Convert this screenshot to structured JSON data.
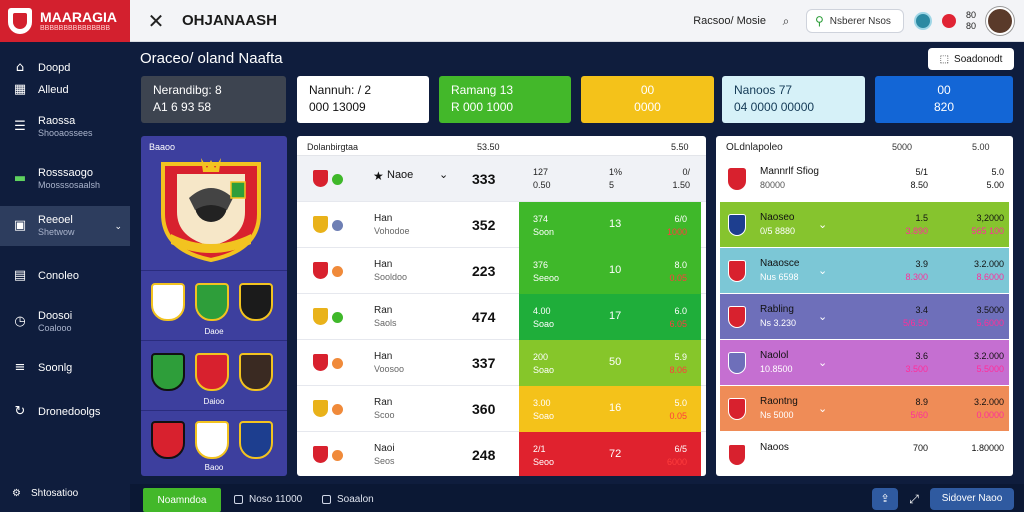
{
  "brand": {
    "name": "MAARAGIA",
    "tagline": "BBBBBBBBBBBBBBB"
  },
  "topbar": {
    "title": "OHJANAASH",
    "link_label": "Racsoo/ Mosie",
    "search_label": "Nsberer Nsos",
    "balance": [
      "80",
      "80"
    ]
  },
  "sidebar": {
    "items": [
      {
        "title": "Doopd",
        "sub": "",
        "icon": "home-icon"
      },
      {
        "title": "Alleud",
        "sub": "",
        "icon": "grid-icon"
      },
      {
        "title": "Raossa",
        "sub": "Shooaossees",
        "icon": "list-icon"
      },
      {
        "title": "Rosssaogo",
        "sub": "Moosssosaalsh",
        "icon": "money-icon"
      },
      {
        "title": "Reeoel",
        "sub": "Shetwow",
        "icon": "wallet-icon",
        "active": true
      },
      {
        "title": "Conoleo",
        "sub": "",
        "icon": "calendar-icon"
      },
      {
        "title": "Doosoi",
        "sub": "Coalooo",
        "icon": "clock-icon"
      },
      {
        "title": "Soonlg",
        "sub": "",
        "icon": "stack-icon"
      },
      {
        "title": "Dronedoolgs",
        "sub": "",
        "icon": "history-icon"
      }
    ],
    "footer": "Shtosatioo"
  },
  "main": {
    "title": "Oraceo/ oland Naafta",
    "export_label": "Soadonodt"
  },
  "kpis": [
    {
      "label": "Nerandibg: 8",
      "value": "A1 6 93 58"
    },
    {
      "label": "Nannuh: / 2",
      "value": "000 13009"
    },
    {
      "label": "Ramang 13",
      "value": "R 000 1000"
    },
    {
      "label": "00",
      "value": "0000"
    },
    {
      "label": "Nanoos 77",
      "value": "04 0000 00000"
    },
    {
      "label": "00",
      "value": "820"
    }
  ],
  "clubs": {
    "header": "Baaoo",
    "captions": [
      "Daoe",
      "Daioo",
      "Baoo"
    ]
  },
  "table": {
    "header": {
      "col1": "Dolanbirgtaa",
      "col2": "53.50",
      "col3": "5.50"
    },
    "highlight": {
      "name": "Naoe",
      "value": "333",
      "a": "127",
      "a_sub": "0.50",
      "b": "1%",
      "b_sub": "5",
      "c": "0/",
      "c_sub": "1.50"
    },
    "rows": [
      {
        "name": "Han",
        "sub": "Vohodoe",
        "value": "352",
        "c1a": "374",
        "c1b": "Soon",
        "c2": "13",
        "c3a": "6/0",
        "c3b": "1000",
        "color": "#3fb82a",
        "dot": "#6e7fb4"
      },
      {
        "name": "Han",
        "sub": "Sooldoo",
        "value": "223",
        "c1a": "376",
        "c1b": "Seeoo",
        "c2": "10",
        "c3a": "8.0",
        "c3b": "0.05",
        "color": "#3fb82a",
        "dot": "#f08a3a"
      },
      {
        "name": "Ran",
        "sub": "Saols",
        "value": "474",
        "c1a": "4.00",
        "c1b": "Soao",
        "c2": "17",
        "c3a": "6.0",
        "c3b": "6.05",
        "color": "#1fae3a",
        "dot": "#3fb82a"
      },
      {
        "name": "Han",
        "sub": "Voosoo",
        "value": "337",
        "c1a": "200",
        "c1b": "Soao",
        "c2": "50",
        "c3a": "5.9",
        "c3b": "8.06",
        "color": "#86c62a",
        "dot": "#f08a3a"
      },
      {
        "name": "Ran",
        "sub": "Scoo",
        "value": "360",
        "c1a": "3.00",
        "c1b": "Soao",
        "c2": "16",
        "c3a": "5.0",
        "c3b": "0.05",
        "color": "#f4c21a",
        "dot": "#f08a3a"
      },
      {
        "name": "Naoi",
        "sub": "Seos",
        "value": "248",
        "c1a": "2/1",
        "c1b": "Seoo",
        "c2": "72",
        "c3a": "6/5",
        "c3b": "6000",
        "color": "#e0222e",
        "dot": "#f08a3a"
      }
    ]
  },
  "right_panel": {
    "header": "OLdnlapoleo",
    "col1": "5000",
    "col2": "5.00",
    "top": {
      "name": "Mannrlf Sfiog",
      "sub": "80000",
      "a1": "5/1",
      "a2": "8.50",
      "b1": "5.0",
      "b2": "5.00"
    },
    "rows": [
      {
        "name": "Naoseo",
        "sub": "0/5 8880",
        "a1": "1.5",
        "a2": "3.890",
        "b1": "3,2000",
        "b2": "565 100",
        "color": "#86c42e"
      },
      {
        "name": "Naaosce",
        "sub": "Nus 6598",
        "a1": "3.9",
        "a2": "8.300",
        "b1": "3.2.000",
        "b2": "8.6000",
        "color": "#7cc7d6"
      },
      {
        "name": "Rabling",
        "sub": "Ns 3.230",
        "a1": "3.4",
        "a2": "5/6.50",
        "b1": "3.5000",
        "b2": "5.6000",
        "color": "#6e6fba"
      },
      {
        "name": "Naolol",
        "sub": "10.8500",
        "a1": "3.6",
        "a2": "3.500",
        "b1": "3.2.000",
        "b2": "5.5000",
        "color": "#c56fd1"
      },
      {
        "name": "Raontng",
        "sub": "Ns 5000",
        "a1": "8.9",
        "a2": "5/60",
        "b1": "3.2.000",
        "b2": "0.0000",
        "color": "#ef8c57"
      },
      {
        "name": "Naoos",
        "sub": "",
        "a1": "700",
        "a2": "",
        "b1": "1.80000",
        "b2": "",
        "color": "#ffffff"
      }
    ]
  },
  "bottom": {
    "primary": "Noamndoa",
    "link1": "Noso 11000",
    "link2": "Soaalon",
    "cta": "Sidover Naoo"
  }
}
